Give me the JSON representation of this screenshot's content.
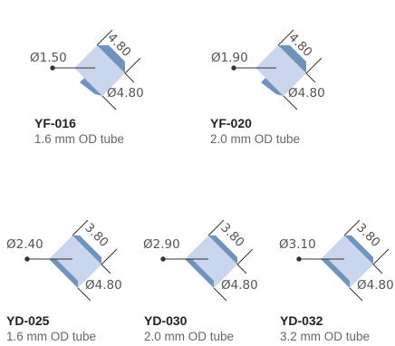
{
  "parts": [
    {
      "code": "YF-016",
      "description": "1.6 mm OD tube",
      "inner_diameter": "Ø1.50",
      "length": "4.80",
      "outer_diameter": "Ø4.80"
    },
    {
      "code": "YF-020",
      "description": "2.0 mm OD tube",
      "inner_diameter": "Ø1.90",
      "length": "4.80",
      "outer_diameter": "Ø4.80"
    },
    {
      "code": "YD-025",
      "description": "1.6 mm OD tube",
      "inner_diameter": "Ø2.40",
      "length": "3.80",
      "outer_diameter": "Ø4.80"
    },
    {
      "code": "YD-030",
      "description": "2.0 mm OD tube",
      "inner_diameter": "Ø2.90",
      "length": "3.80",
      "outer_diameter": "Ø4.80"
    },
    {
      "code": "YD-032",
      "description": "3.2 mm OD tube",
      "inner_diameter": "Ø3.10",
      "length": "3.80",
      "outer_diameter": "Ø4.80"
    }
  ],
  "colors": {
    "body_fill": "#c9d6ee",
    "band_fill": "#6e93bd",
    "line": "#333333",
    "dimension_text": "#555555"
  }
}
